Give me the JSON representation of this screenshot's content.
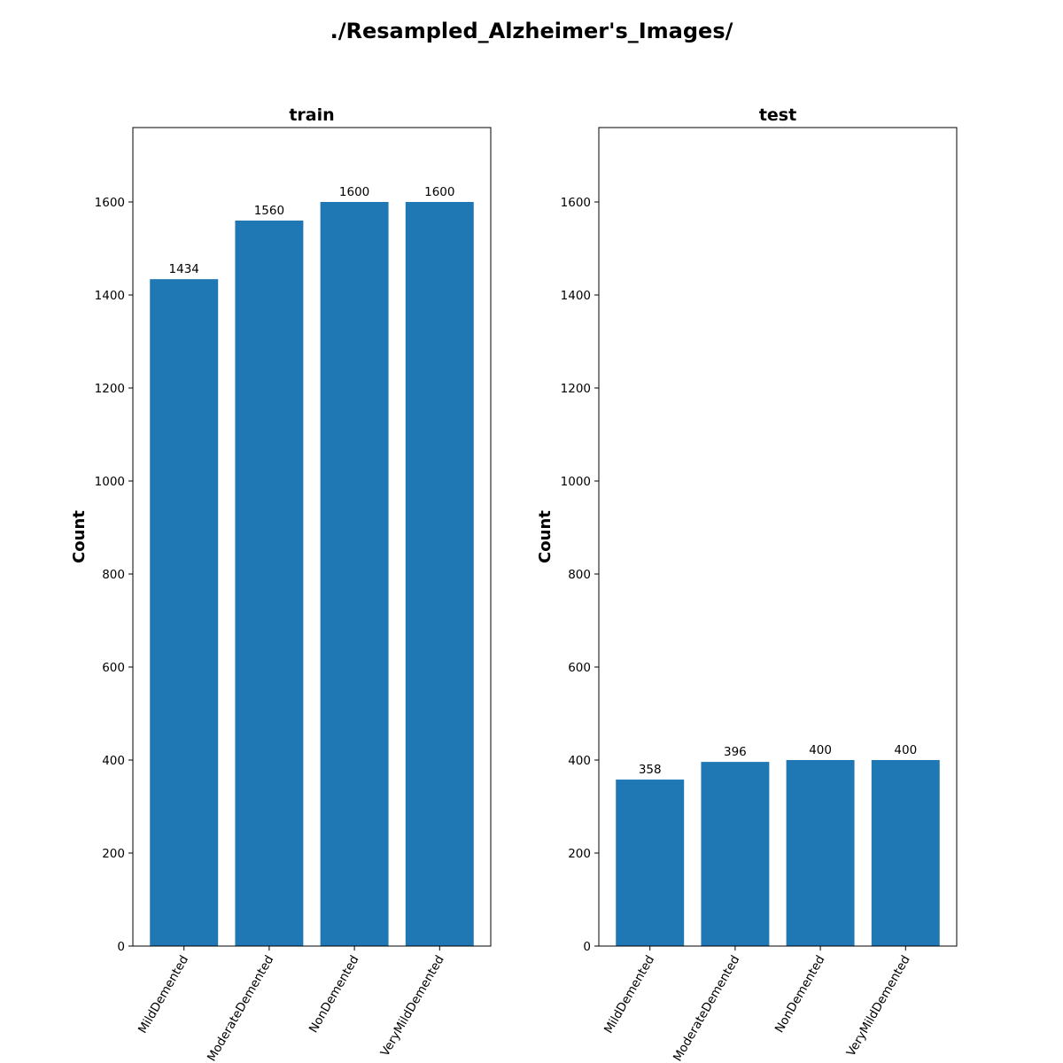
{
  "figure": {
    "suptitle": "./Resampled_Alzheimer's_Images/"
  },
  "colors": {
    "bar": "#1f77b4",
    "axes": "#000000",
    "background": "#ffffff"
  },
  "chart_data": [
    {
      "type": "bar",
      "title": "train",
      "xlabel": "",
      "ylabel": "Count",
      "categories": [
        "MildDemented",
        "ModerateDemented",
        "NonDemented",
        "VeryMildDemented"
      ],
      "values": [
        1434,
        1560,
        1600,
        1600
      ],
      "bar_labels": [
        "1434",
        "1560",
        "1600",
        "1600"
      ],
      "ylim": [
        0,
        1760
      ],
      "yticks": [
        0,
        200,
        400,
        600,
        800,
        1000,
        1200,
        1400,
        1600
      ],
      "grid": false,
      "legend": "none"
    },
    {
      "type": "bar",
      "title": "test",
      "xlabel": "",
      "ylabel": "Count",
      "categories": [
        "MildDemented",
        "ModerateDemented",
        "NonDemented",
        "VeryMildDemented"
      ],
      "values": [
        358,
        396,
        400,
        400
      ],
      "bar_labels": [
        "358",
        "396",
        "400",
        "400"
      ],
      "ylim": [
        0,
        1760
      ],
      "yticks": [
        0,
        200,
        400,
        600,
        800,
        1000,
        1200,
        1400,
        1600
      ],
      "grid": false,
      "legend": "none"
    }
  ]
}
